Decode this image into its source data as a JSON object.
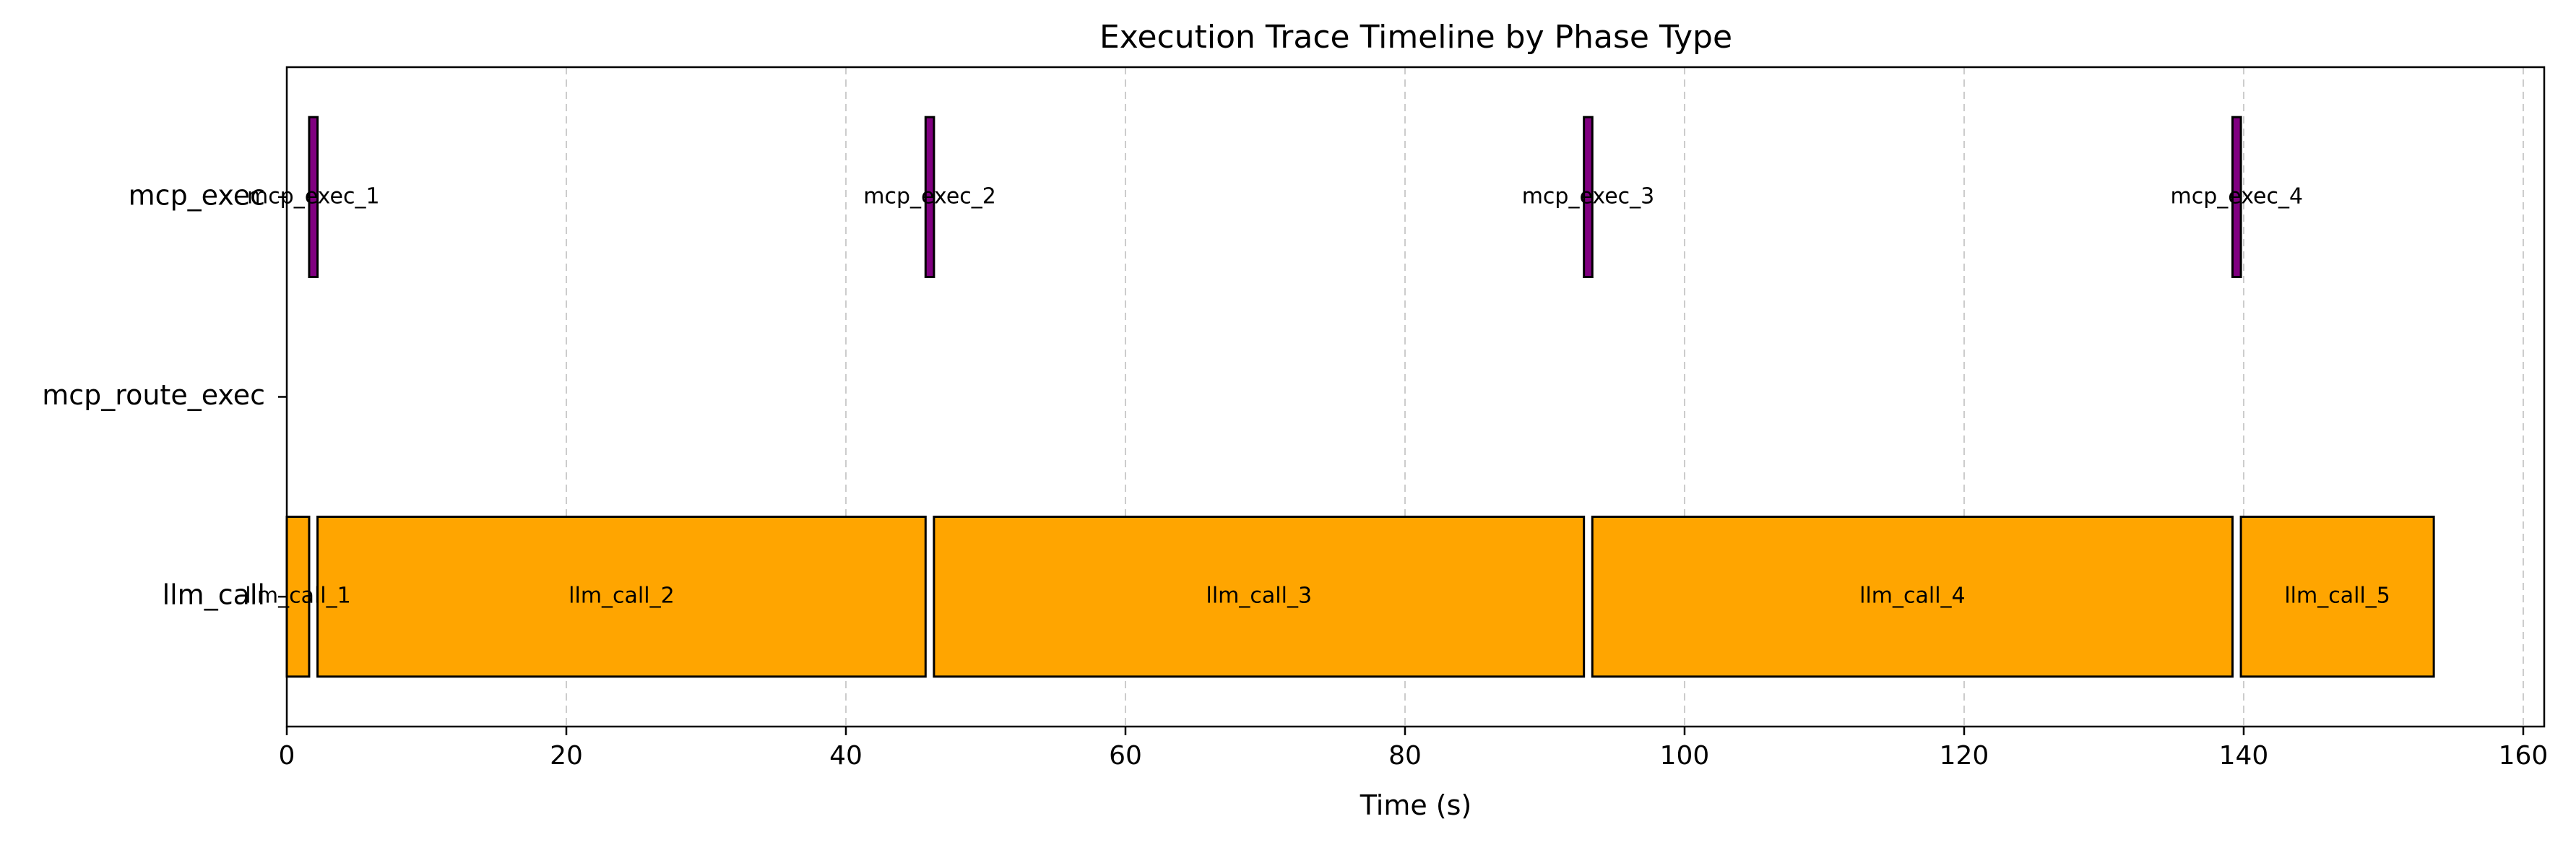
{
  "chart_data": {
    "type": "bar",
    "orientation": "horizontal",
    "title": "Execution Trace Timeline by Phase Type",
    "xlabel": "Time (s)",
    "ylabel": "",
    "xlim": [
      0,
      161.5
    ],
    "x_ticks": [
      0,
      20,
      40,
      60,
      80,
      100,
      120,
      140,
      160
    ],
    "categories": [
      "mcp_exec",
      "mcp_route_exec",
      "llm_call"
    ],
    "grid": {
      "x": true,
      "y": false,
      "style": "dashed"
    },
    "legend": "none",
    "series": [
      {
        "category": "llm_call",
        "color": "#FFA500",
        "spans": [
          {
            "label": "llm_call_1",
            "start": 0.0,
            "end": 1.6
          },
          {
            "label": "llm_call_2",
            "start": 2.2,
            "end": 45.7
          },
          {
            "label": "llm_call_3",
            "start": 46.3,
            "end": 92.8
          },
          {
            "label": "llm_call_4",
            "start": 93.4,
            "end": 139.2
          },
          {
            "label": "llm_call_5",
            "start": 139.8,
            "end": 153.6
          }
        ]
      },
      {
        "category": "mcp_exec",
        "color": "#800080",
        "spans": [
          {
            "label": "mcp_exec_1",
            "start": 1.6,
            "end": 2.2
          },
          {
            "label": "mcp_exec_2",
            "start": 45.7,
            "end": 46.3
          },
          {
            "label": "mcp_exec_3",
            "start": 92.8,
            "end": 93.4
          },
          {
            "label": "mcp_exec_4",
            "start": 139.2,
            "end": 139.8
          }
        ]
      }
    ]
  }
}
